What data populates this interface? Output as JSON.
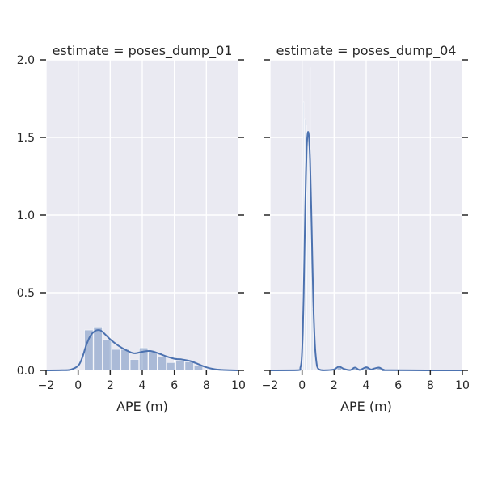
{
  "chart_data": [
    {
      "type": "histogram+kde",
      "title": "estimate = poses_dump_01",
      "xlabel": "APE (m)",
      "ylabel": "",
      "xlim": [
        -2,
        10
      ],
      "ylim": [
        0,
        2.0
      ],
      "xticks": [
        -2,
        0,
        2,
        4,
        6,
        8,
        10
      ],
      "yticks": [
        0.0,
        0.5,
        1.0,
        1.5,
        2.0
      ],
      "ytick_labels": [
        "0.0",
        "0.5",
        "1.0",
        "1.5",
        "2.0"
      ],
      "grid": true,
      "bar_color": "#4c72b0",
      "line_color": "#4c72b0",
      "bins": [
        {
          "x0": 0.4,
          "x1": 0.97,
          "density": 0.26
        },
        {
          "x0": 0.97,
          "x1": 1.54,
          "density": 0.28
        },
        {
          "x0": 1.54,
          "x1": 2.11,
          "density": 0.2
        },
        {
          "x0": 2.11,
          "x1": 2.68,
          "density": 0.135
        },
        {
          "x0": 2.68,
          "x1": 3.25,
          "density": 0.135
        },
        {
          "x0": 3.25,
          "x1": 3.82,
          "density": 0.07
        },
        {
          "x0": 3.82,
          "x1": 4.39,
          "density": 0.145
        },
        {
          "x0": 4.39,
          "x1": 4.96,
          "density": 0.12
        },
        {
          "x0": 4.96,
          "x1": 5.53,
          "density": 0.085
        },
        {
          "x0": 5.53,
          "x1": 6.1,
          "density": 0.05
        },
        {
          "x0": 6.1,
          "x1": 6.67,
          "density": 0.065
        },
        {
          "x0": 6.67,
          "x1": 7.24,
          "density": 0.055
        },
        {
          "x0": 7.24,
          "x1": 7.81,
          "density": 0.03
        }
      ],
      "kde": {
        "x": [
          -2,
          -1,
          -0.5,
          0,
          0.25,
          0.5,
          0.75,
          1,
          1.25,
          1.5,
          2,
          2.5,
          3,
          3.5,
          4,
          4.5,
          5,
          5.5,
          6,
          6.5,
          7,
          7.5,
          8,
          8.5,
          9,
          9.5,
          10
        ],
        "y": [
          0,
          0.001,
          0.004,
          0.03,
          0.08,
          0.16,
          0.22,
          0.25,
          0.26,
          0.25,
          0.2,
          0.16,
          0.13,
          0.11,
          0.12,
          0.125,
          0.11,
          0.09,
          0.075,
          0.07,
          0.06,
          0.04,
          0.02,
          0.008,
          0.003,
          0.001,
          0
        ]
      }
    },
    {
      "type": "histogram+kde",
      "title": "estimate = poses_dump_04",
      "xlabel": "APE (m)",
      "ylabel": "",
      "xlim": [
        -2,
        10
      ],
      "ylim": [
        0,
        2.0
      ],
      "xticks": [
        -2,
        0,
        2,
        4,
        6,
        8,
        10
      ],
      "yticks": [
        0.0,
        0.5,
        1.0,
        1.5,
        2.0
      ],
      "grid": true,
      "bar_color": "#4c72b0",
      "line_color": "#4c72b0",
      "bins": [
        {
          "x0": 0.08,
          "x1": 0.16,
          "density": 1.73
        },
        {
          "x0": 0.16,
          "x1": 0.24,
          "density": 1.62
        },
        {
          "x0": 0.24,
          "x1": 0.32,
          "density": 1.58
        },
        {
          "x0": 0.32,
          "x1": 0.4,
          "density": 1.5
        },
        {
          "x0": 0.4,
          "x1": 0.48,
          "density": 1.52
        },
        {
          "x0": 0.48,
          "x1": 0.56,
          "density": 1.95
        },
        {
          "x0": 0.56,
          "x1": 0.64,
          "density": 0.9
        },
        {
          "x0": 0.64,
          "x1": 0.72,
          "density": 0.4
        },
        {
          "x0": 2.2,
          "x1": 2.5,
          "density": 0.02
        },
        {
          "x0": 3.1,
          "x1": 3.4,
          "density": 0.012
        },
        {
          "x0": 3.9,
          "x1": 4.2,
          "density": 0.018
        },
        {
          "x0": 4.7,
          "x1": 5.0,
          "density": 0.015
        }
      ],
      "kde": {
        "x": [
          -2,
          -0.3,
          -0.1,
          0,
          0.1,
          0.2,
          0.3,
          0.4,
          0.5,
          0.6,
          0.7,
          0.8,
          0.9,
          1.0,
          1.2,
          1.5,
          2.0,
          2.3,
          2.6,
          3.0,
          3.3,
          3.6,
          4.0,
          4.3,
          4.5,
          4.8,
          5.1,
          5.5,
          10
        ],
        "y": [
          0,
          0.001,
          0.02,
          0.12,
          0.48,
          1.05,
          1.45,
          1.53,
          1.35,
          0.92,
          0.45,
          0.17,
          0.05,
          0.012,
          0.002,
          0.001,
          0.006,
          0.025,
          0.01,
          0.002,
          0.018,
          0.003,
          0.02,
          0.006,
          0.012,
          0.018,
          0.004,
          0.001,
          0
        ]
      }
    }
  ]
}
